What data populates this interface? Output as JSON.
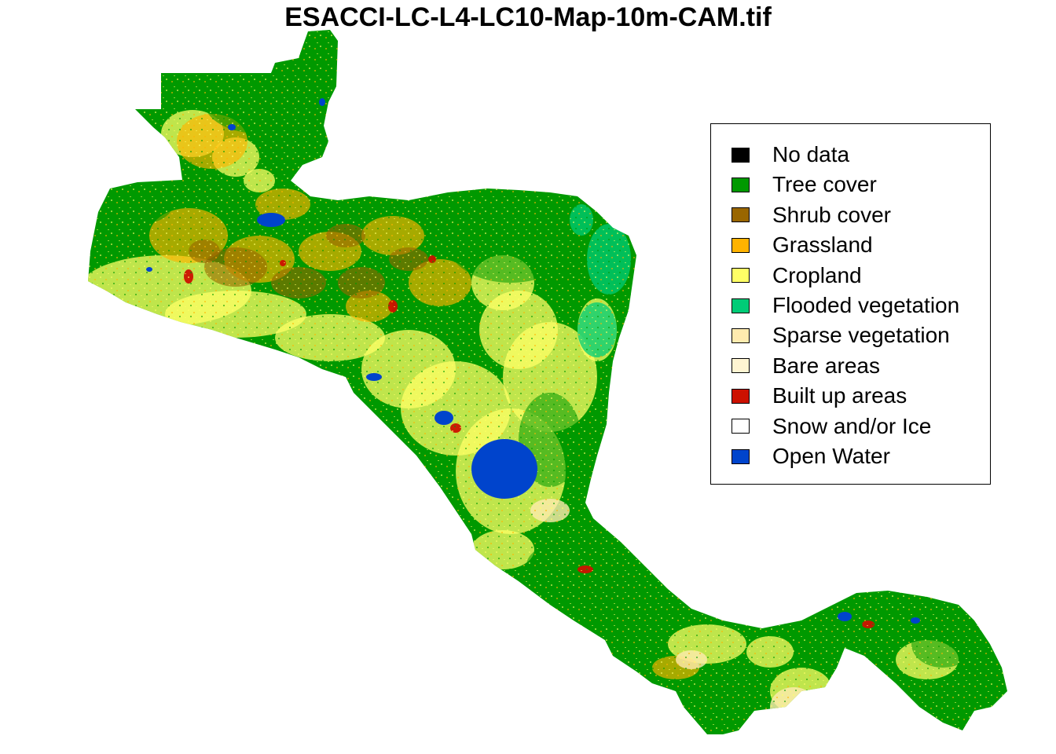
{
  "title": "ESACCI-LC-L4-LC10-Map-10m-CAM.tif",
  "map": {
    "region": "Central America",
    "colors": {
      "tree": "#009900",
      "shrub": "#996600",
      "grass": "#FFB300",
      "crop": "#FFFF66",
      "flooded": "#00CC77",
      "sparse": "#FFEBAF",
      "built": "#CC1100",
      "water": "#0044CC"
    }
  },
  "legend": {
    "position": "top-right",
    "items": [
      {
        "label": "No data",
        "color": "#000000"
      },
      {
        "label": "Tree cover",
        "color": "#009900"
      },
      {
        "label": "Shrub cover",
        "color": "#996600"
      },
      {
        "label": "Grassland",
        "color": "#FFB300"
      },
      {
        "label": "Cropland",
        "color": "#FFFF66"
      },
      {
        "label": "Flooded vegetation",
        "color": "#00CC77"
      },
      {
        "label": "Sparse vegetation",
        "color": "#FFEBAF"
      },
      {
        "label": "Bare areas",
        "color": "#FFF5D2"
      },
      {
        "label": "Built up areas",
        "color": "#CC1100"
      },
      {
        "label": "Snow and/or Ice",
        "color": "#FFFFFF"
      },
      {
        "label": "Open Water",
        "color": "#0044CC"
      }
    ]
  }
}
